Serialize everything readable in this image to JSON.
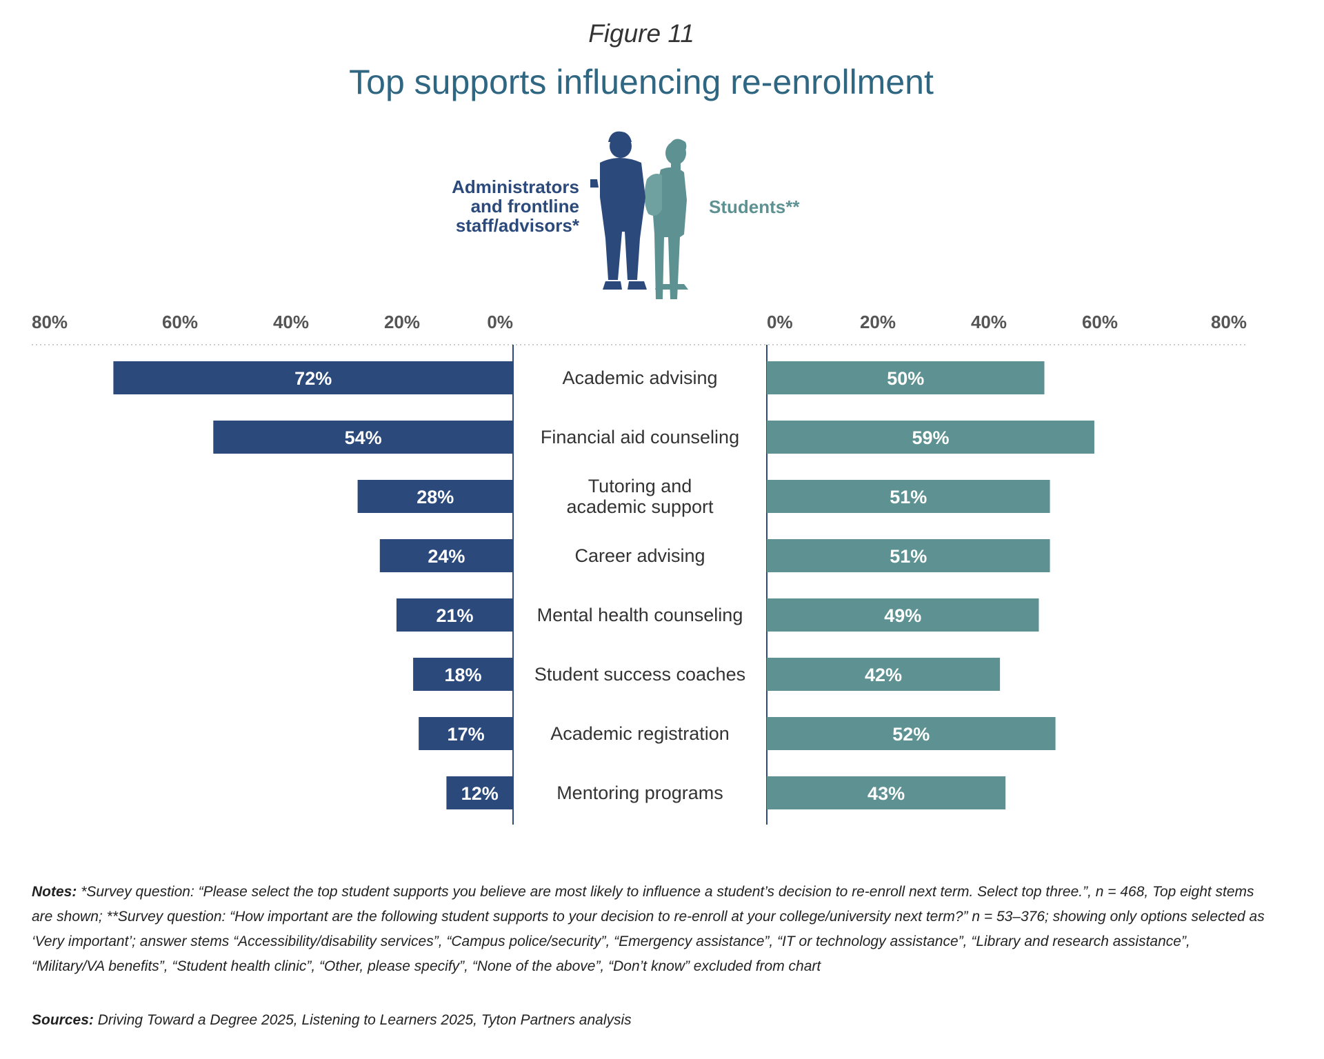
{
  "figure": {
    "label": "Figure 11",
    "notes_label": "Notes:",
    "notes_text": "*Survey question: “Please select the top student supports you believe are most likely to influence a student’s decision to re-enroll next term. Select top three.”, n = 468, Top eight stems are shown; **Survey question: “How important are the following student supports to your decision to re-enroll at your college/university next term?” n = 53–376; showing only options selected as ‘Very important’; answer stems “Accessibility/disability services”, “Campus police/security”, “Emergency assistance”, “IT or technology assistance”, “Library and research assistance”, “Military/VA benefits”, “Student health clinic”, “Other, please specify”, “None of the above”, “Don’t know” excluded from chart",
    "sources_label": "Sources:",
    "sources_text": "Driving Toward a Degree 2025, Listening to Learners 2025, Tyton Partners analysis"
  },
  "colors": {
    "admin": "#2b4a7b",
    "students": "#5e9191",
    "title": "#2f6682",
    "axis_label": "#555555"
  },
  "chart_data": {
    "type": "bar",
    "orientation": "horizontal-diverging",
    "title": "Top supports influencing re-enrollment",
    "categories": [
      "Academic advising",
      "Financial aid counseling",
      "Tutoring and academic support",
      "Career advising",
      "Mental health counseling",
      "Student success coaches",
      "Academic registration",
      "Mentoring programs"
    ],
    "category_lines": [
      [
        "Academic advising"
      ],
      [
        "Financial aid counseling"
      ],
      [
        "Tutoring and",
        "academic support"
      ],
      [
        "Career advising"
      ],
      [
        "Mental health counseling"
      ],
      [
        "Student success coaches"
      ],
      [
        "Academic registration"
      ],
      [
        "Mentoring programs"
      ]
    ],
    "series": [
      {
        "name": "Administrators and frontline staff/advisors*",
        "name_lines": [
          "Administrators",
          "and frontline",
          "staff/advisors*"
        ],
        "side": "left",
        "values": [
          72,
          54,
          28,
          24,
          21,
          18,
          17,
          12
        ],
        "labels": [
          "72%",
          "54%",
          "28%",
          "24%",
          "21%",
          "18%",
          "17%",
          "12%"
        ]
      },
      {
        "name": "Students**",
        "side": "right",
        "values": [
          50,
          59,
          51,
          51,
          49,
          42,
          52,
          43
        ],
        "labels": [
          "50%",
          "59%",
          "51%",
          "51%",
          "49%",
          "42%",
          "52%",
          "43%"
        ]
      }
    ],
    "xlim": [
      0,
      80
    ],
    "left_ticks": [
      "80%",
      "60%",
      "40%",
      "20%",
      "0%"
    ],
    "right_ticks": [
      "0%",
      "20%",
      "40%",
      "60%",
      "80%"
    ],
    "grid": false,
    "legend": "top-center"
  }
}
